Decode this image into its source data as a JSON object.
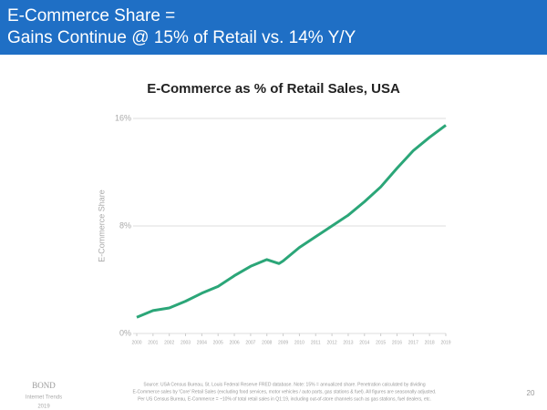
{
  "slide": {
    "title": [
      "E-Commerce Share =",
      "Gains Continue @ 15% of Retail vs. 14% Y/Y"
    ],
    "logo": [
      "BOND",
      "Internet Trends",
      "2019"
    ],
    "source": [
      "Source: USA Census Bureau, St. Louis Federal Reserve FRED database. Note: 15% = annualized share. Penetration calculated by dividing",
      "E-Commerce sales by 'Core' Retail Sales (excluding food services, motor vehicles / auto parts, gas stations & fuel). All figures are seasonally adjusted.",
      "Per US Census Bureau, E-Commerce = ~10% of total retail sales in Q1:19, including out-of-store channels such as gas stations, fuel dealers, etc."
    ],
    "page_number": "20"
  },
  "chart_data": {
    "type": "line",
    "title": "E-Commerce as % of Retail Sales, USA",
    "y_label": "E-Commerce Share",
    "series": [
      {
        "name": "E-Commerce Share",
        "color": "#2ba678",
        "x": [
          2000,
          2001,
          2002,
          2003,
          2004,
          2005,
          2006,
          2007,
          2008,
          2008.75,
          2009,
          2010,
          2011,
          2012,
          2013,
          2014,
          2015,
          2016,
          2017,
          2018,
          2019
        ],
        "values": [
          1.2,
          1.7,
          1.9,
          2.4,
          3.0,
          3.5,
          4.3,
          5.0,
          5.5,
          5.2,
          5.4,
          6.4,
          7.2,
          8.0,
          8.8,
          9.8,
          10.9,
          12.3,
          13.6,
          14.6,
          15.5
        ]
      }
    ],
    "xlim": [
      2000,
      2019
    ],
    "xticks": [
      2000,
      2001,
      2002,
      2003,
      2004,
      2005,
      2006,
      2007,
      2008,
      2009,
      2010,
      2011,
      2012,
      2013,
      2014,
      2015,
      2016,
      2017,
      2018,
      2019
    ],
    "ylim": [
      0,
      16
    ],
    "yticks": [
      {
        "value": 0,
        "label": "0%"
      },
      {
        "value": 8,
        "label": "8%"
      },
      {
        "value": 16,
        "label": "16%"
      }
    ],
    "grid": true
  }
}
